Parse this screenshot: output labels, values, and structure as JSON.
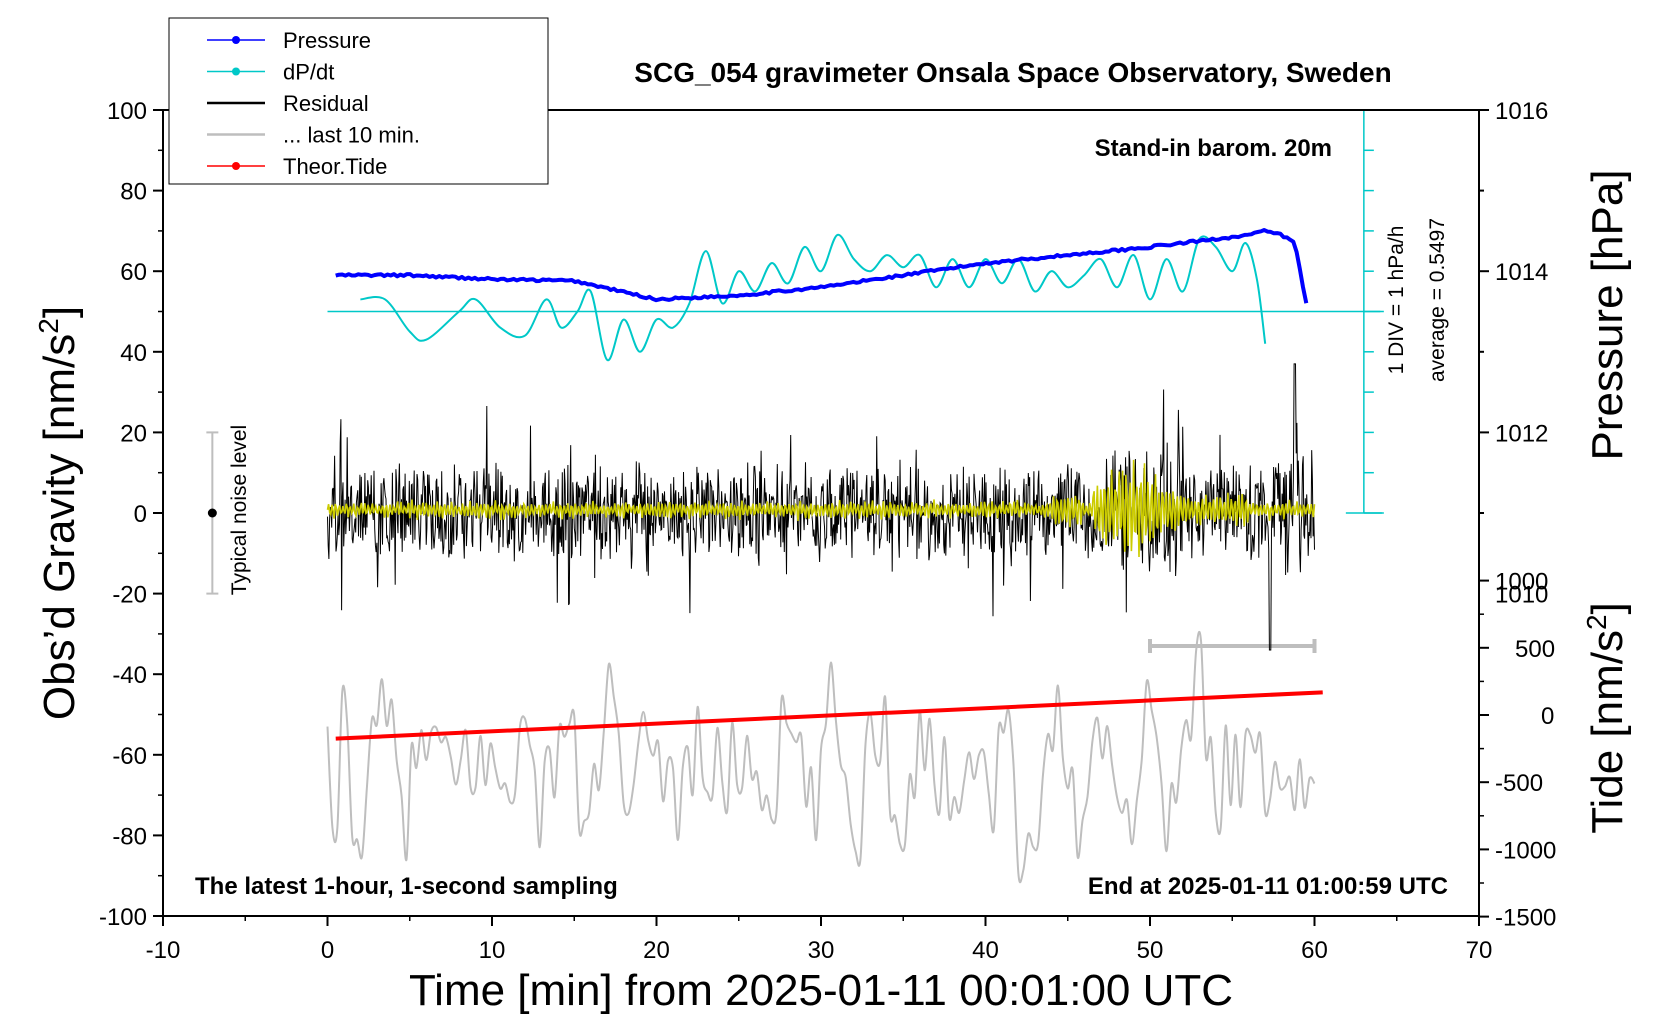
{
  "chart_data": {
    "type": "line",
    "title": "SCG_054 gravimeter Onsala Space Observatory, Sweden",
    "xlabel": "Time [min] from 2025-01-11 00:01:00 UTC",
    "ylabel_left_prefix": "Obs’d Gravity [nm/s",
    "ylabel_left_sup": "2",
    "ylabel_left_suffix": "]",
    "ylabel_right_top": "Pressure [hPa]",
    "ylabel_right_bottom_prefix": "Tide [nm/s",
    "ylabel_right_bottom_sup": "2",
    "ylabel_right_bottom_suffix": "]",
    "xlim": [
      -10,
      70
    ],
    "ylim": [
      -100,
      100
    ],
    "x_ticks": [
      "-10",
      "0",
      "10",
      "20",
      "30",
      "40",
      "50",
      "60",
      "70"
    ],
    "y_ticks": [
      "-100",
      "-80",
      "-60",
      "-40",
      "-20",
      "0",
      "20",
      "40",
      "60",
      "80",
      "100"
    ],
    "pressure_ticks": [
      "1010",
      "1012",
      "1014",
      "1016"
    ],
    "tide_ticks": [
      "-1500",
      "-1000",
      "-500",
      "0",
      "500",
      "1000"
    ],
    "notes": {
      "barometer": "Stand-in barom. 20m",
      "latest": "The latest 1-hour, 1-second sampling",
      "end": "End at 2025-01-11 01:00:59 UTC",
      "div": "1 DIV = 1 hPa/h",
      "average": "average = 0.5497",
      "noise": "Typical noise level"
    },
    "legend": [
      {
        "label": "Pressure",
        "color": "#0000ff",
        "marker": true
      },
      {
        "label": "dP/dt",
        "color": "#00c8c8",
        "marker": true
      },
      {
        "label": "Residual",
        "color": "#000000",
        "marker": false
      },
      {
        "label": "... last 10 min.",
        "color": "#bebebe",
        "marker": false
      },
      {
        "label": "Theor.Tide",
        "color": "#ff0000",
        "marker": true
      }
    ],
    "series": {
      "pressure_hpa": {
        "x": [
          0.5,
          5,
          10,
          15,
          20,
          25,
          30,
          35,
          40,
          45,
          50,
          52,
          54,
          56,
          57,
          58,
          58.8,
          59.5
        ],
        "y": [
          1013.95,
          1013.95,
          1013.9,
          1013.88,
          1013.65,
          1013.7,
          1013.8,
          1013.95,
          1014.1,
          1014.2,
          1014.3,
          1014.35,
          1014.4,
          1014.45,
          1014.5,
          1014.45,
          1014.35,
          1013.6
        ]
      },
      "dpdt": {
        "x": [
          2,
          3.5,
          5,
          6,
          8,
          9,
          10.5,
          12,
          13.3,
          14.2,
          15.2,
          16,
          17,
          18,
          19,
          20,
          21,
          22,
          23,
          24,
          25,
          26,
          27,
          28,
          29,
          30,
          31,
          32,
          33,
          34,
          35,
          36,
          37,
          38,
          39,
          40,
          41,
          42,
          43,
          44,
          45,
          46,
          47,
          48,
          49,
          50,
          51,
          52,
          53,
          54,
          55,
          55.8,
          56.5,
          57
        ],
        "y": [
          53,
          53,
          45,
          43,
          50,
          53,
          46,
          44,
          53,
          46,
          50,
          55,
          38,
          48,
          40,
          48,
          46,
          52,
          65,
          52,
          60,
          55,
          62,
          57,
          66,
          60,
          69,
          63,
          60,
          64,
          61,
          64,
          56,
          63,
          56,
          63,
          57,
          63,
          55,
          60,
          56,
          59,
          63,
          56,
          64,
          53,
          63,
          55,
          68,
          66,
          60,
          67,
          58,
          42
        ]
      },
      "theor_tide": {
        "x": [
          0.5,
          60.5
        ],
        "y": [
          -56,
          -44.5
        ]
      },
      "noise_bar": {
        "x": -7,
        "center": 0,
        "half_range": 20
      },
      "last10_bracket": {
        "x_start": 50,
        "x_end": 60,
        "y": -33
      }
    }
  },
  "colors": {
    "pressure": "#0000ff",
    "dpdt": "#00c8c8",
    "residual": "#000000",
    "smoothed": "#cccc00",
    "last10": "#bebebe",
    "tide": "#ff0000",
    "noise": "#bebebe"
  }
}
